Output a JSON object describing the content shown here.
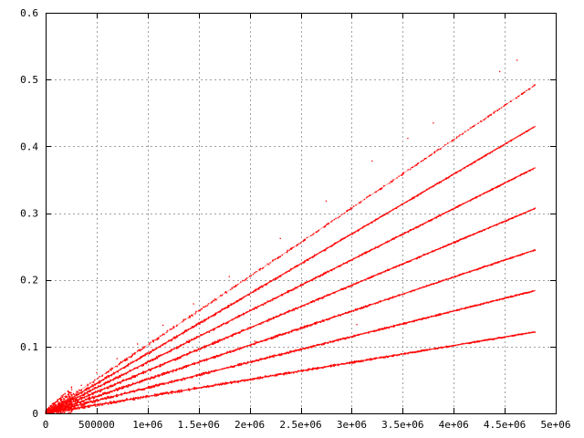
{
  "chart_data": {
    "type": "scatter",
    "title": "",
    "xlabel": "",
    "ylabel": "",
    "xlim": [
      0,
      5000000
    ],
    "ylim": [
      0,
      0.6
    ],
    "grid": true,
    "legend": "none",
    "color": "#ff0000",
    "x_tick_labels": [
      "0",
      "500000",
      "1e+06",
      "1.5e+06",
      "2e+06",
      "2.5e+06",
      "3e+06",
      "3.5e+06",
      "4e+06",
      "4.5e+06",
      "5e+06"
    ],
    "x_tick_values": [
      0,
      500000,
      1000000,
      1500000,
      2000000,
      2500000,
      3000000,
      3500000,
      4000000,
      4500000,
      5000000
    ],
    "y_tick_labels": [
      "0",
      "0.1",
      "0.2",
      "0.3",
      "0.4",
      "0.5",
      "0.6"
    ],
    "y_tick_values": [
      0,
      0.1,
      0.2,
      0.3,
      0.4,
      0.5,
      0.6
    ],
    "series": [
      {
        "x": [
          0,
          4800000
        ],
        "y": [
          0,
          0.122
        ]
      },
      {
        "x": [
          0,
          4800000
        ],
        "y": [
          0,
          0.184
        ]
      },
      {
        "x": [
          0,
          4800000
        ],
        "y": [
          0,
          0.245
        ]
      },
      {
        "x": [
          0,
          4800000
        ],
        "y": [
          0,
          0.307
        ]
      },
      {
        "x": [
          0,
          4800000
        ],
        "y": [
          0,
          0.368
        ]
      },
      {
        "x": [
          0,
          4800000
        ],
        "y": [
          0,
          0.43
        ]
      },
      {
        "x": [
          0,
          4800000
        ],
        "y": [
          0,
          0.492
        ]
      }
    ],
    "outliers": [
      [
        4620000,
        0.529
      ],
      [
        4450000,
        0.512
      ],
      [
        3800000,
        0.435
      ],
      [
        3550000,
        0.412
      ],
      [
        3200000,
        0.378
      ],
      [
        2750000,
        0.318
      ],
      [
        2300000,
        0.262
      ],
      [
        1800000,
        0.205
      ],
      [
        1450000,
        0.164
      ],
      [
        1150000,
        0.132
      ],
      [
        900000,
        0.104
      ],
      [
        700000,
        0.082
      ],
      [
        500000,
        0.061
      ],
      [
        350000,
        0.042
      ],
      [
        250000,
        0.031
      ],
      [
        150000,
        0.019
      ],
      [
        2800000,
        0.071
      ],
      [
        3700000,
        0.095
      ],
      [
        3050000,
        0.133
      ],
      [
        2050000,
        0.108
      ]
    ]
  }
}
